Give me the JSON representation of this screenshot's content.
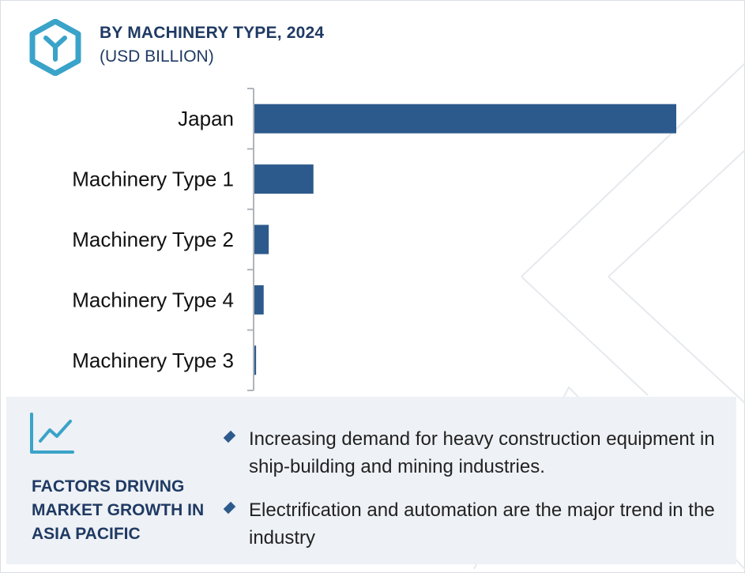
{
  "header": {
    "title": "BY MACHINERY TYPE, 2024",
    "subtitle": "(USD BILLION)",
    "logo_icon": "hexagon-y-logo-icon"
  },
  "colors": {
    "bar": "#2d5a8c",
    "title": "#1f3a63",
    "panel_bg": "#eef1f5",
    "logo": "#3aa3c9"
  },
  "chart_data": {
    "type": "bar",
    "orientation": "horizontal",
    "categories": [
      "Japan",
      "Machinery Type 1",
      "Machinery Type 2",
      "Machinery Type 4",
      "Machinery Type 3"
    ],
    "values": [
      100,
      14,
      3.4,
      2.2,
      0.4
    ],
    "title": "BY MACHINERY TYPE, 2024",
    "subtitle": "(USD BILLION)",
    "xlabel": "",
    "ylabel": "",
    "xlim": [
      0,
      100
    ],
    "grid": false,
    "legend": "none"
  },
  "factors": {
    "icon": "line-chart-trend-icon",
    "title": "FACTORS DRIVING MARKET GROWTH IN ASIA PACIFIC",
    "bullets": [
      "Increasing demand for heavy construction equipment in ship-building and mining industries.",
      "Electrification and automation are the major trend in the industry"
    ]
  }
}
